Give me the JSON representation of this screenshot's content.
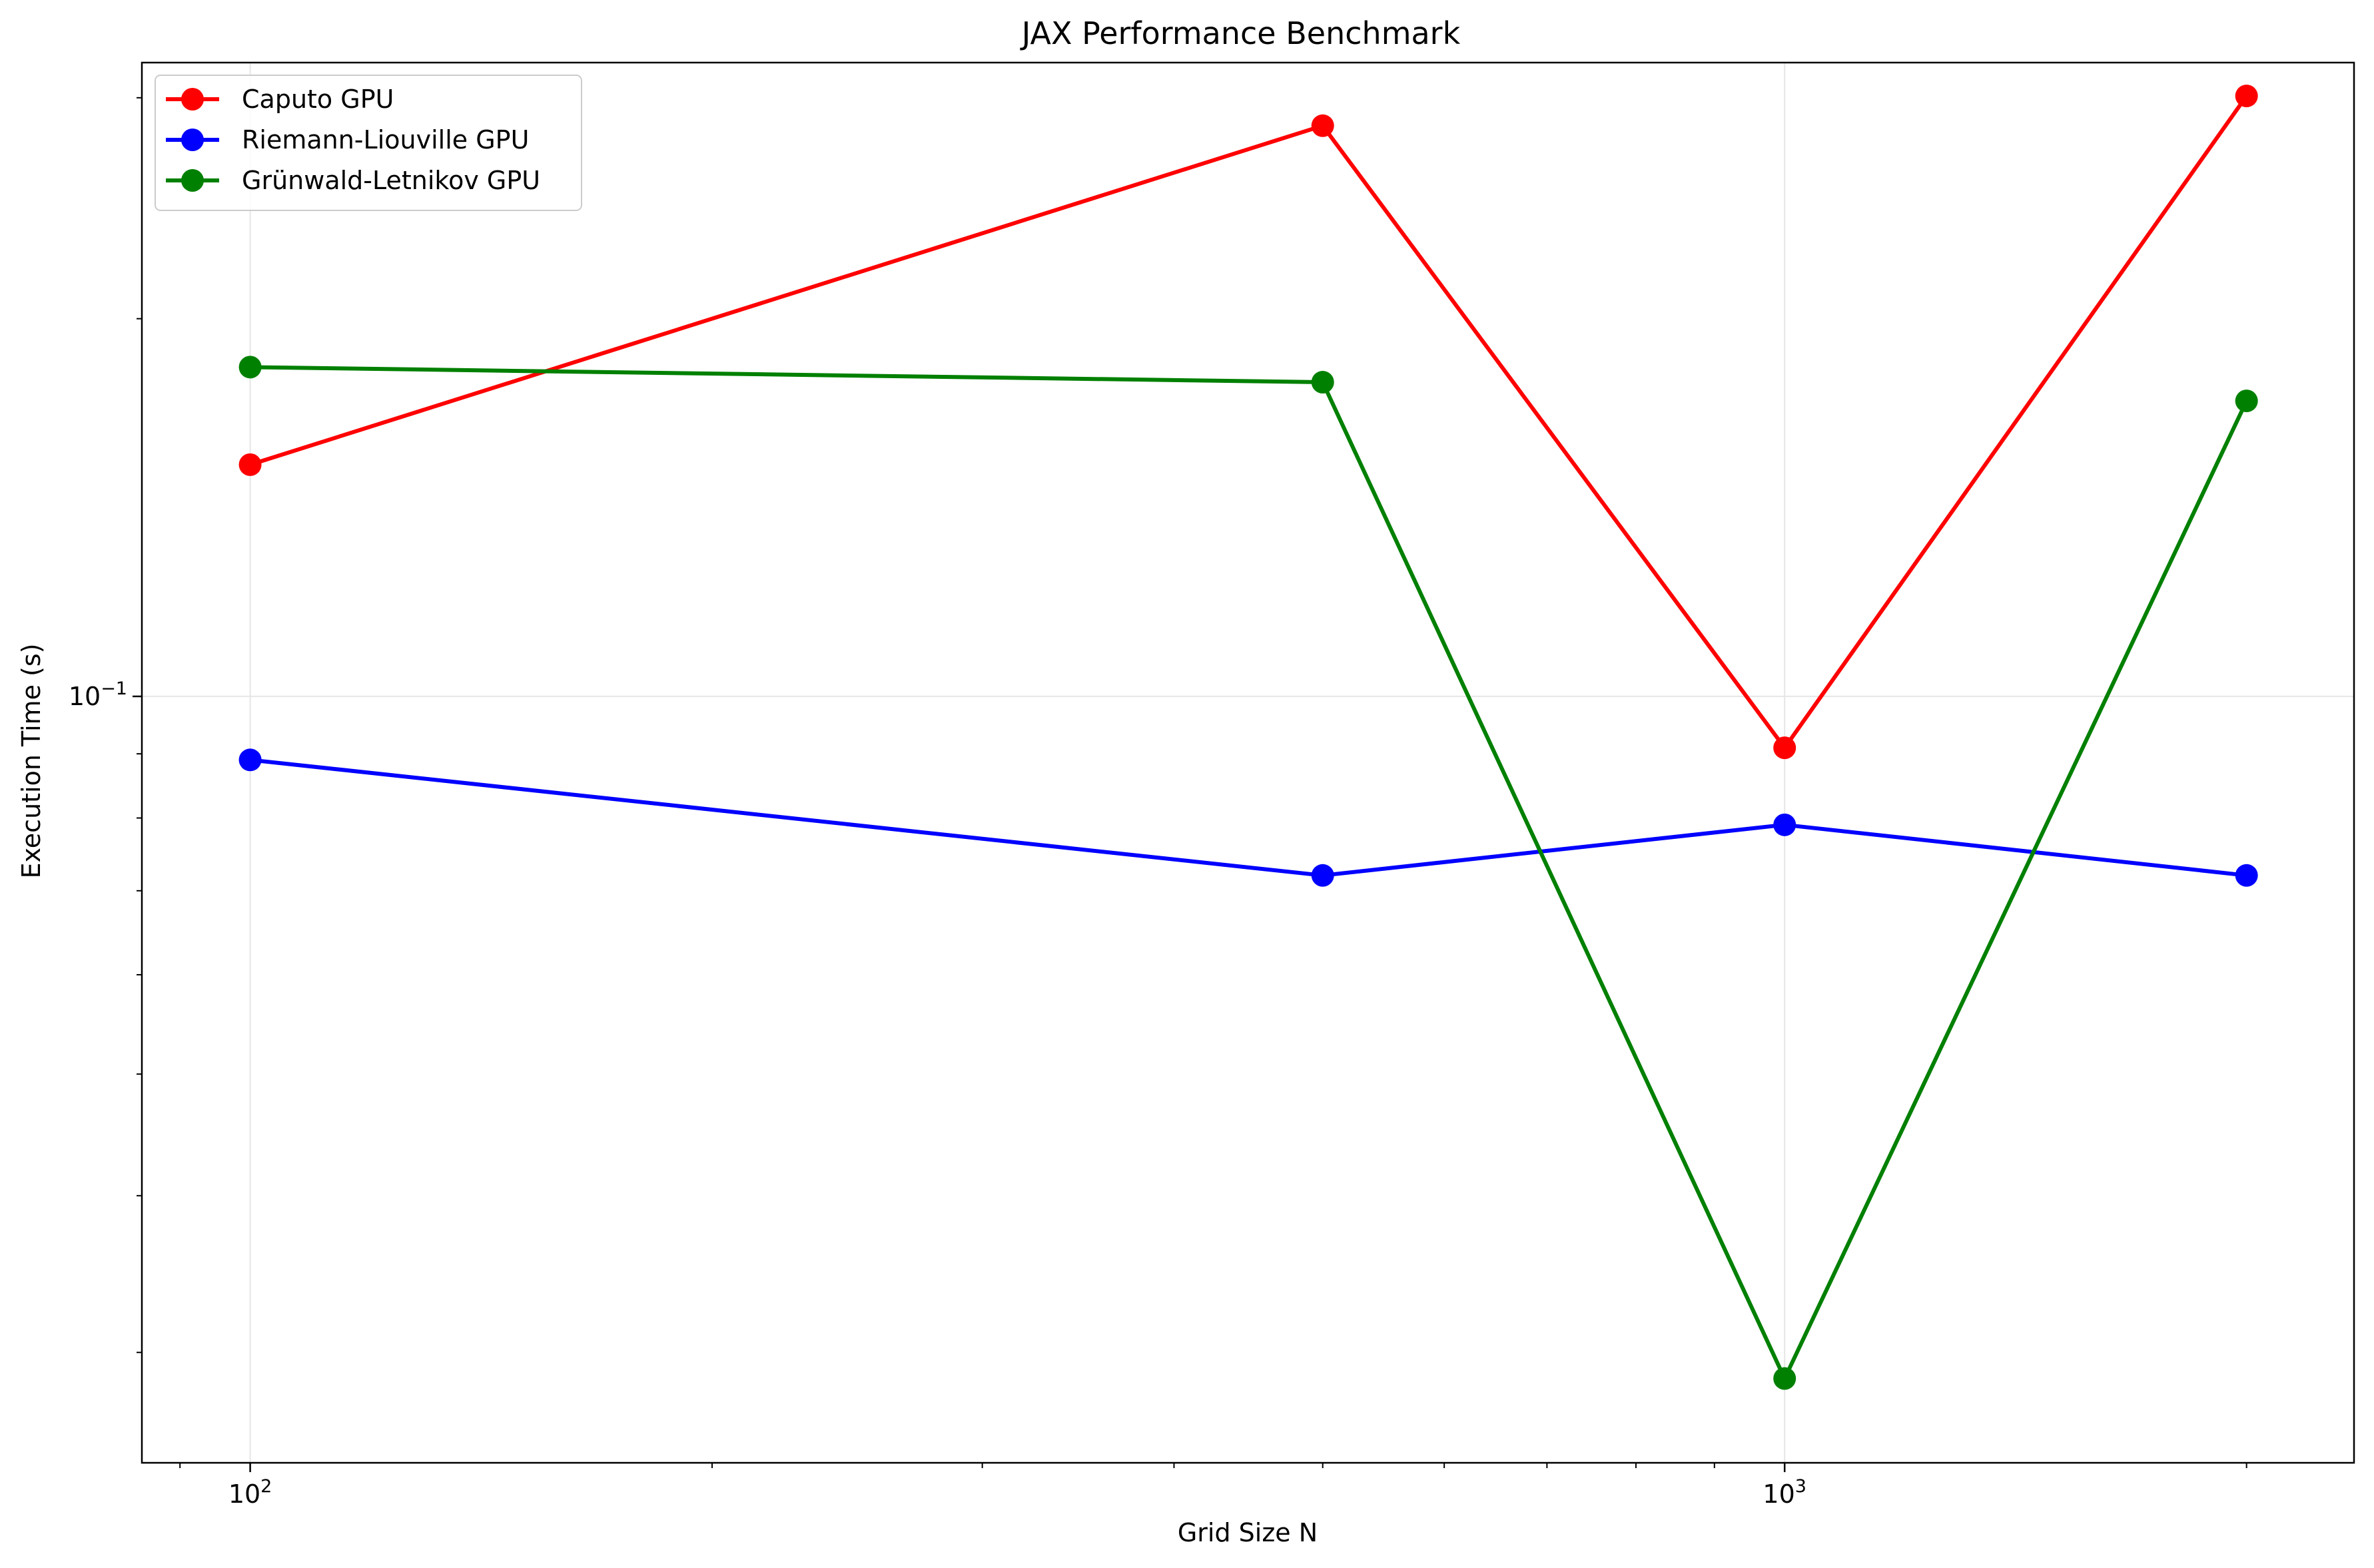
{
  "chart_data": {
    "type": "line",
    "title": "JAX Performance Benchmark",
    "xlabel": "Grid Size N",
    "ylabel": "Execution Time (s)",
    "x_scale": "log",
    "y_scale": "log",
    "xlim": [
      85,
      2350
    ],
    "ylim": [
      0.0245,
      0.32
    ],
    "x_ticks": [
      {
        "value": 100,
        "base": "10",
        "exp": "2"
      },
      {
        "value": 1000,
        "base": "10",
        "exp": "3"
      }
    ],
    "y_ticks": [
      {
        "value": 0.1,
        "base": "10",
        "exp": "−1"
      }
    ],
    "grid": true,
    "legend_position": "top-left",
    "series": [
      {
        "name": "Caputo GPU",
        "color": "#ff0000",
        "points": [
          [
            100,
            0.153
          ],
          [
            500,
            0.285
          ],
          [
            1000,
            0.091
          ],
          [
            2000,
            0.301
          ]
        ]
      },
      {
        "name": "Riemann-Liouville GPU",
        "color": "#0000ff",
        "points": [
          [
            100,
            0.089
          ],
          [
            500,
            0.072
          ],
          [
            1000,
            0.079
          ],
          [
            2000,
            0.072
          ]
        ]
      },
      {
        "name": "Grünwald-Letnikov GPU",
        "color": "#008000",
        "points": [
          [
            100,
            0.183
          ],
          [
            500,
            0.178
          ],
          [
            1000,
            0.0286
          ],
          [
            2000,
            0.172
          ]
        ]
      }
    ]
  }
}
